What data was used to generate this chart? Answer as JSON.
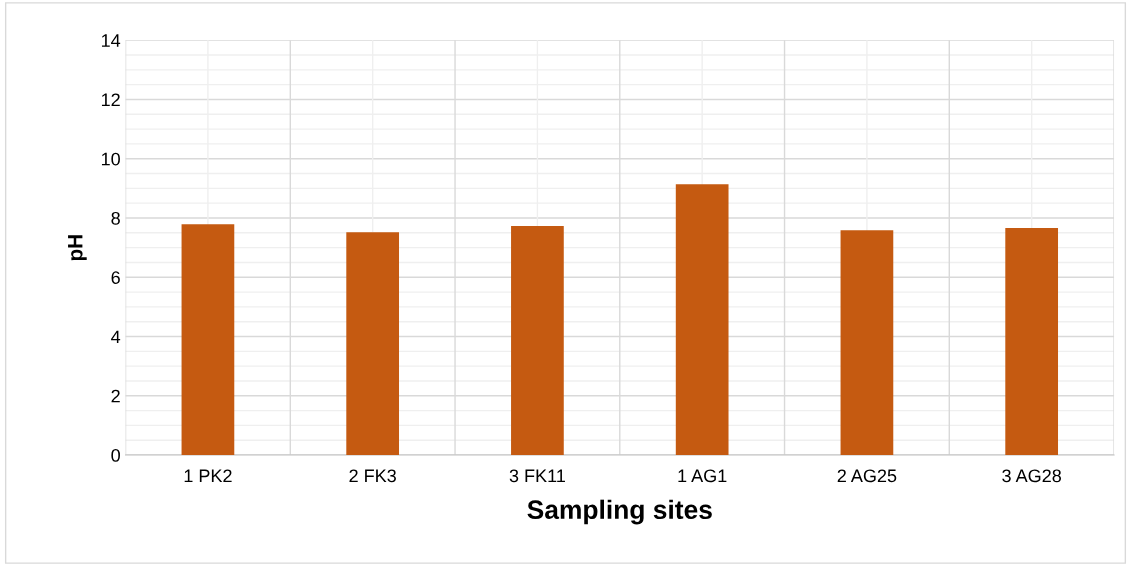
{
  "chart_data": {
    "type": "bar",
    "xlabel": "Sampling sites",
    "ylabel": "pH",
    "categories": [
      "1 PK2",
      "2 FK3",
      "3 FK11",
      "1 AG1",
      "2 AG25",
      "3 AG28"
    ],
    "values": [
      7.79,
      7.52,
      7.73,
      9.14,
      7.59,
      7.66
    ],
    "color": "#c55a11",
    "ylim": [
      0,
      14
    ],
    "yticks": [
      0,
      2,
      4,
      6,
      8,
      10,
      12,
      14
    ],
    "grid": true
  }
}
